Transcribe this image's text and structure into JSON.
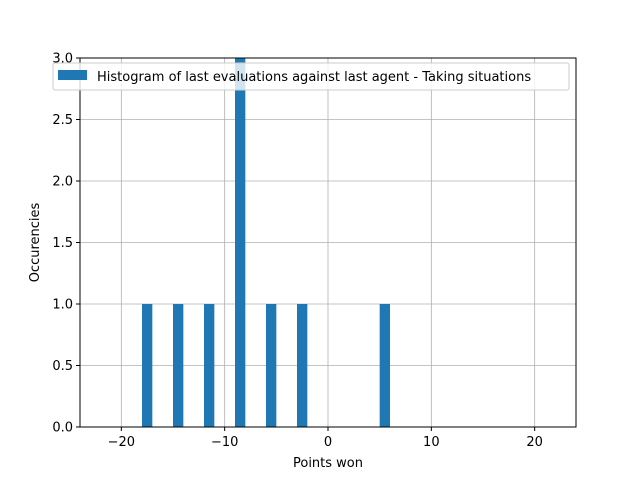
{
  "chart_data": {
    "type": "bar",
    "title": "",
    "xlabel": "Points won",
    "ylabel": "Occurencies",
    "xlim": [
      -24,
      24
    ],
    "ylim": [
      0,
      3
    ],
    "xticks": [
      -20,
      -10,
      0,
      10,
      20
    ],
    "xtick_labels": [
      "−20",
      "−10",
      "0",
      "10",
      "20"
    ],
    "yticks": [
      0,
      0.5,
      1,
      1.5,
      2,
      2.5,
      3
    ],
    "ytick_labels": [
      "0.0",
      "0.5",
      "1.0",
      "1.5",
      "2.0",
      "2.5",
      "3.0"
    ],
    "grid": true,
    "legend_position": "top-right",
    "bar_width": 1,
    "series": [
      {
        "name": "Histogram of last evaluations against last agent - Taking situations",
        "color": "#1f77b4",
        "x": [
          -17.5,
          -14.5,
          -11.5,
          -8.5,
          -5.5,
          -2.5,
          5.5
        ],
        "values": [
          1,
          1,
          1,
          3,
          1,
          1,
          1
        ]
      }
    ]
  }
}
